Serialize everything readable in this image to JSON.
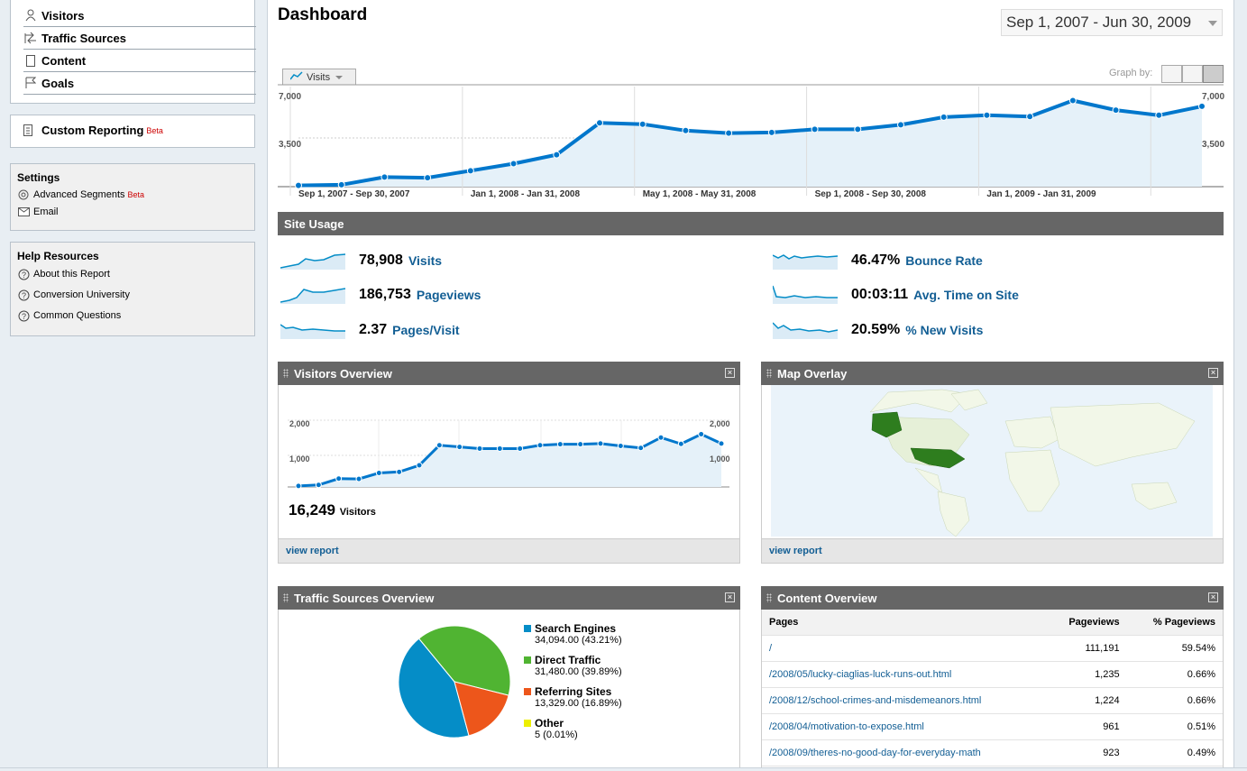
{
  "sidebar": {
    "nav": [
      {
        "label": "Visitors",
        "icon": "person-icon"
      },
      {
        "label": "Traffic Sources",
        "icon": "arrows-icon"
      },
      {
        "label": "Content",
        "icon": "page-icon"
      },
      {
        "label": "Goals",
        "icon": "flag-icon"
      }
    ],
    "custom_reporting": {
      "label": "Custom Reporting",
      "badge": "Beta"
    },
    "settings": {
      "title": "Settings",
      "items": [
        {
          "label": "Advanced Segments",
          "badge": "Beta"
        },
        {
          "label": "Email"
        }
      ]
    },
    "help": {
      "title": "Help Resources",
      "items": [
        {
          "label": "About this Report"
        },
        {
          "label": "Conversion University"
        },
        {
          "label": "Common Questions"
        }
      ]
    }
  },
  "header": {
    "title": "Dashboard",
    "date_range": "Sep 1, 2007 - Jun 30, 2009",
    "metric_button": "Visits",
    "graph_by": "Graph by:"
  },
  "main_chart": {
    "y_max_label": "7,000",
    "y_mid_label": "3,500",
    "x_labels": [
      "Sep 1, 2007 - Sep 30, 2007",
      "Jan 1, 2008 - Jan 31, 2008",
      "May 1, 2008 - May 31, 2008",
      "Sep 1, 2008 - Sep 30, 2008",
      "Jan 1, 2009 - Jan 31, 2009"
    ]
  },
  "chart_data": [
    {
      "type": "area",
      "ylim": [
        0,
        7000
      ],
      "series": [
        {
          "name": "Visits",
          "values": [
            100,
            150,
            750,
            700,
            1250,
            1800,
            2500,
            5000,
            4900,
            4400,
            4200,
            4250,
            4500,
            4500,
            4850,
            5450,
            5600,
            5500,
            6750,
            6000,
            5600,
            6300
          ]
        }
      ]
    },
    {
      "type": "line",
      "ylim": [
        0,
        2000
      ],
      "series": [
        {
          "name": "Visitors",
          "values": [
            30,
            60,
            250,
            240,
            420,
            450,
            650,
            1250,
            1200,
            1150,
            1150,
            1150,
            1250,
            1280,
            1280,
            1300,
            1230,
            1170,
            1480,
            1290,
            1580,
            1300
          ]
        }
      ]
    },
    {
      "type": "pie",
      "categories": [
        "Search Engines",
        "Direct Traffic",
        "Referring Sites",
        "Other"
      ],
      "values": [
        34094,
        31480,
        13329,
        5
      ],
      "colors": [
        "#058dc7",
        "#50b432",
        "#ed561b",
        "#edef00"
      ]
    }
  ],
  "site_usage": {
    "title": "Site Usage",
    "metrics": [
      {
        "value": "78,908",
        "label": "Visits"
      },
      {
        "value": "186,753",
        "label": "Pageviews"
      },
      {
        "value": "2.37",
        "label": "Pages/Visit"
      },
      {
        "value": "46.47%",
        "label": "Bounce Rate"
      },
      {
        "value": "00:03:11",
        "label": "Avg. Time on Site"
      },
      {
        "value": "20.59%",
        "label": "% New Visits"
      }
    ]
  },
  "visitors_overview": {
    "title": "Visitors Overview",
    "y_max": "2,000",
    "y_mid": "1,000",
    "count": "16,249",
    "count_label": "Visitors",
    "link": "view report"
  },
  "map_overlay": {
    "title": "Map Overlay",
    "link": "view report"
  },
  "traffic_sources": {
    "title": "Traffic Sources Overview",
    "legend": [
      {
        "name": "Search Engines",
        "detail": "34,094.00 (43.21%)"
      },
      {
        "name": "Direct Traffic",
        "detail": "31,480.00 (39.89%)"
      },
      {
        "name": "Referring Sites",
        "detail": "13,329.00 (16.89%)"
      },
      {
        "name": "Other",
        "detail": "5 (0.01%)"
      }
    ]
  },
  "content_overview": {
    "title": "Content Overview",
    "headers": [
      "Pages",
      "Pageviews",
      "% Pageviews"
    ],
    "rows": [
      [
        "/",
        "111,191",
        "59.54%"
      ],
      [
        "/2008/05/lucky-ciaglias-luck-runs-out.html",
        "1,235",
        "0.66%"
      ],
      [
        "/2008/12/school-crimes-and-misdemeanors.html",
        "1,224",
        "0.66%"
      ],
      [
        "/2008/04/motivation-to-expose.html",
        "961",
        "0.51%"
      ],
      [
        "/2008/09/theres-no-good-day-for-everyday-math",
        "923",
        "0.49%"
      ]
    ]
  }
}
